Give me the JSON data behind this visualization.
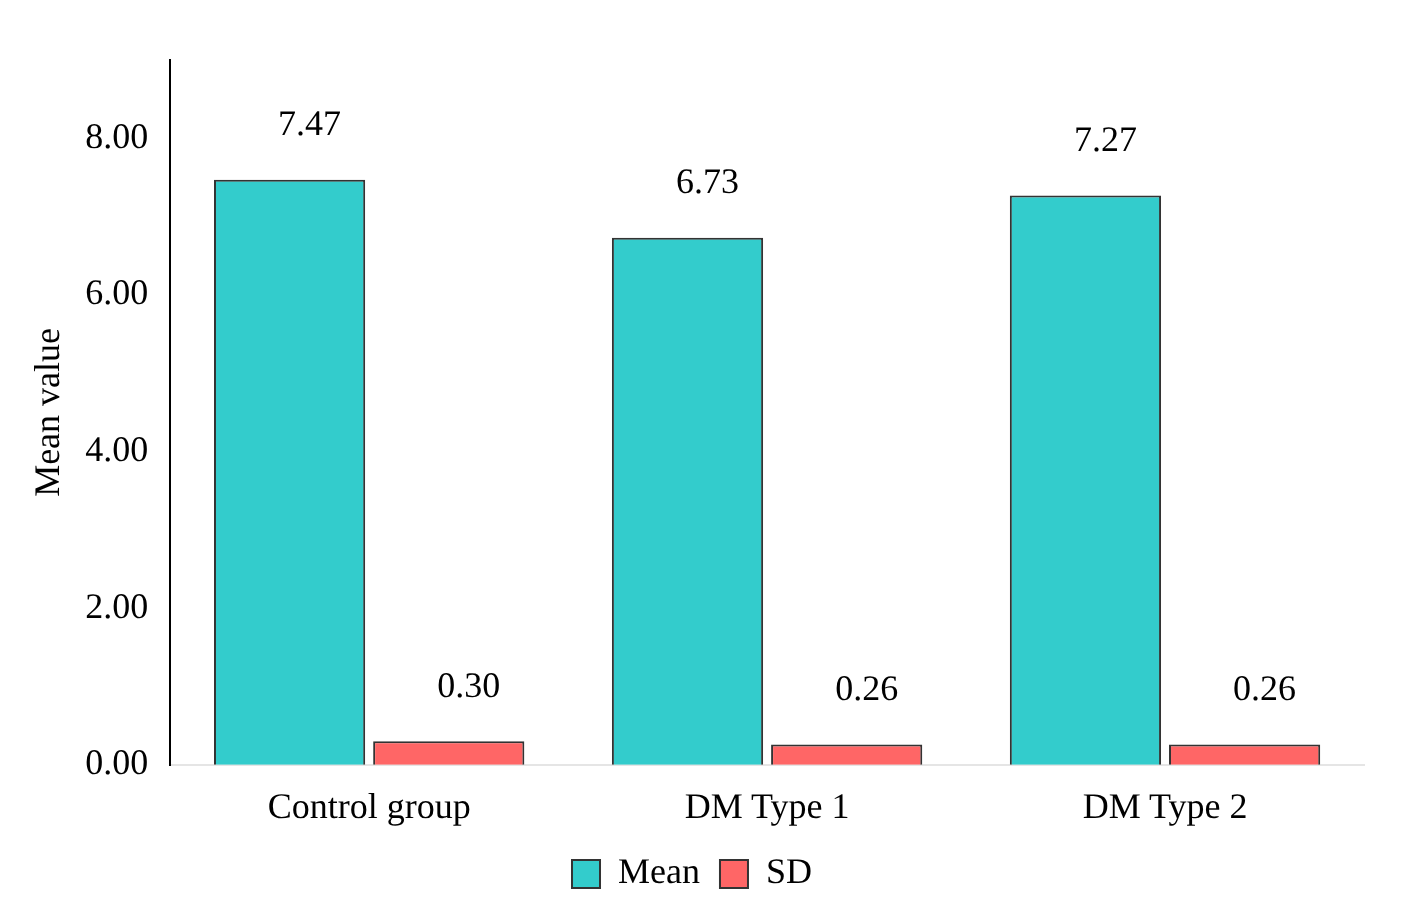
{
  "chart_data": {
    "type": "bar",
    "categories": [
      "Control group",
      "DM Type 1",
      "DM Type 2"
    ],
    "series": [
      {
        "name": "Mean",
        "color": "#33cccc",
        "values": [
          7.47,
          6.73,
          7.27
        ],
        "value_labels": [
          "7.47",
          "6.73",
          "7.27"
        ]
      },
      {
        "name": "SD",
        "color": "#ff6666",
        "values": [
          0.3,
          0.26,
          0.26
        ],
        "value_labels": [
          "0.30",
          "0.26",
          "0.26"
        ]
      }
    ],
    "ylabel": "Mean value",
    "ylim": [
      0,
      9
    ],
    "yticks": [
      {
        "value": 0,
        "label": "0.00"
      },
      {
        "value": 2,
        "label": "2.00"
      },
      {
        "value": 4,
        "label": "4.00"
      },
      {
        "value": 6,
        "label": "6.00"
      },
      {
        "value": 8,
        "label": "8.00"
      }
    ],
    "grid": false,
    "legend": "bottom"
  }
}
